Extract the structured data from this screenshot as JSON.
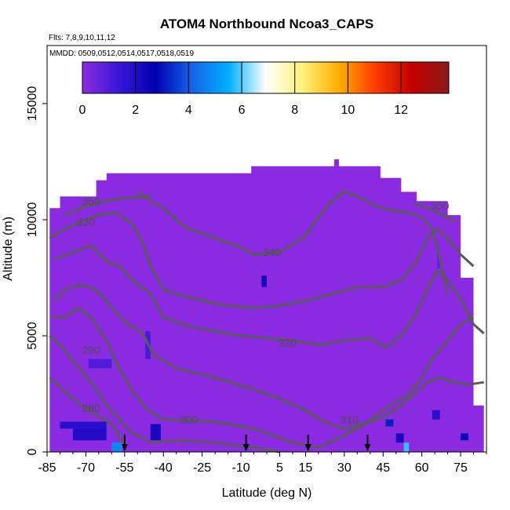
{
  "chart_data": {
    "type": "heatmap",
    "title": "ATOM4 Northbound Ncoa3_CAPS",
    "flights_note": "Flts: 7,8,9,10,11,12",
    "dates_note": "MMDD: 0509,0512,0514,0517,0518,0519",
    "xlabel": "Latitude (deg N)",
    "ylabel": "Altitude (m)",
    "xlim": [
      -85,
      85
    ],
    "ylim": [
      0,
      17500
    ],
    "x_ticks": [
      -85,
      -70,
      -55,
      -40,
      -25,
      -10,
      5,
      15,
      30,
      45,
      60,
      75
    ],
    "y_ticks": [
      0,
      5000,
      10000,
      15000
    ],
    "colorbar": {
      "min": 0,
      "max": 13.8,
      "ticks": [
        0,
        2,
        4,
        6,
        8,
        10,
        12
      ],
      "colors": [
        "#8a2be2",
        "#3a16d8",
        "#0000b0",
        "#1565e8",
        "#00b0ff",
        "#ffffff",
        "#fff27a",
        "#ffae00",
        "#ff3a00",
        "#c00000",
        "#8b1a1a"
      ]
    },
    "background_value": 0,
    "background_color": "#8a2be2",
    "data_envelope": [
      [
        -84,
        0
      ],
      [
        -84,
        10500
      ],
      [
        -80,
        10500
      ],
      [
        -80,
        11000
      ],
      [
        -66,
        11000
      ],
      [
        -66,
        11700
      ],
      [
        -62,
        11700
      ],
      [
        -62,
        12000
      ],
      [
        -6,
        12000
      ],
      [
        -6,
        12300
      ],
      [
        44,
        12300
      ],
      [
        44,
        11800
      ],
      [
        52,
        11800
      ],
      [
        52,
        11200
      ],
      [
        58,
        11200
      ],
      [
        58,
        10800
      ],
      [
        70,
        10800
      ],
      [
        70,
        10200
      ],
      [
        75,
        10200
      ],
      [
        75,
        7500
      ],
      [
        80,
        7500
      ],
      [
        80,
        2000
      ],
      [
        84,
        2000
      ],
      [
        84,
        0
      ]
    ],
    "spikes": [
      [
        27,
        12000,
        12600
      ]
    ],
    "patches": [
      {
        "lat": [
          -80,
          -62
        ],
        "alt": [
          1000,
          1300
        ],
        "value": 1.8
      },
      {
        "lat": [
          -75,
          -62
        ],
        "alt": [
          500,
          1000
        ],
        "value": 2.0
      },
      {
        "lat": [
          -60,
          -56
        ],
        "alt": [
          0,
          400
        ],
        "value": 4.8
      },
      {
        "lat": [
          -45,
          -41
        ],
        "alt": [
          500,
          1200
        ],
        "value": 2.2
      },
      {
        "lat": [
          -69,
          -60
        ],
        "alt": [
          3600,
          4000
        ],
        "value": 1.0
      },
      {
        "lat": [
          -47,
          -45
        ],
        "alt": [
          4000,
          5200
        ],
        "value": 1.1
      },
      {
        "lat": [
          -2,
          0
        ],
        "alt": [
          7100,
          7600
        ],
        "value": 2.2
      },
      {
        "lat": [
          46,
          49
        ],
        "alt": [
          1100,
          1400
        ],
        "value": 3.2
      },
      {
        "lat": [
          50,
          53
        ],
        "alt": [
          400,
          800
        ],
        "value": 2.2
      },
      {
        "lat": [
          53,
          55
        ],
        "alt": [
          0,
          400
        ],
        "value": 5.8
      },
      {
        "lat": [
          64,
          67
        ],
        "alt": [
          1400,
          1800
        ],
        "value": 1.8
      },
      {
        "lat": [
          75,
          78
        ],
        "alt": [
          500,
          800
        ],
        "value": 2.4
      },
      {
        "lat": [
          66,
          67
        ],
        "alt": [
          7900,
          8500
        ],
        "value": 0.8
      }
    ],
    "contours": [
      {
        "level": 280,
        "label": "280",
        "label_at": [
          -68,
          1900
        ],
        "points": [
          [
            -84,
            3200
          ],
          [
            -78,
            2600
          ],
          [
            -72,
            2000
          ],
          [
            -66,
            1600
          ],
          [
            -60,
            1200
          ],
          [
            -57,
            700
          ],
          [
            -55,
            300
          ]
        ]
      },
      {
        "level": 290,
        "label": "290",
        "label_at": [
          -68,
          4400
        ],
        "points": [
          [
            -84,
            5000
          ],
          [
            -80,
            4600
          ],
          [
            -74,
            3800
          ],
          [
            -68,
            3000
          ],
          [
            -62,
            2000
          ],
          [
            -57,
            1400
          ],
          [
            -52,
            800
          ],
          [
            -44,
            400
          ],
          [
            -35,
            500
          ],
          [
            -20,
            400
          ],
          [
            -5,
            200
          ],
          [
            5,
            0
          ]
        ]
      },
      {
        "level": 300,
        "label": "300",
        "label_at": [
          -30,
          1400
        ],
        "points": [
          [
            -83,
            5800
          ],
          [
            -78,
            5800
          ],
          [
            -73,
            6200
          ],
          [
            -68,
            5800
          ],
          [
            -62,
            4800
          ],
          [
            -58,
            3800
          ],
          [
            -52,
            2600
          ],
          [
            -46,
            1800
          ],
          [
            -40,
            1400
          ],
          [
            -20,
            1300
          ],
          [
            -5,
            1000
          ],
          [
            10,
            400
          ],
          [
            20,
            200
          ],
          [
            28,
            600
          ],
          [
            38,
            1200
          ],
          [
            45,
            1800
          ],
          [
            55,
            2500
          ],
          [
            60,
            3200
          ],
          [
            64,
            4000
          ],
          [
            70,
            4800
          ],
          [
            75,
            5500
          ],
          [
            80,
            5800
          ]
        ]
      },
      {
        "level": 310,
        "label": "310",
        "label_at": [
          32,
          1400
        ],
        "points": [
          [
            -82,
            6500
          ],
          [
            -78,
            7000
          ],
          [
            -72,
            7200
          ],
          [
            -66,
            7000
          ],
          [
            -60,
            6200
          ],
          [
            -55,
            5600
          ],
          [
            -48,
            5100
          ],
          [
            -44,
            4200
          ],
          [
            -35,
            3600
          ],
          [
            -20,
            3200
          ],
          [
            -8,
            2800
          ],
          [
            5,
            2300
          ],
          [
            15,
            1800
          ],
          [
            22,
            1300
          ],
          [
            30,
            1000
          ],
          [
            40,
            1300
          ],
          [
            47,
            1600
          ],
          [
            52,
            2000
          ],
          [
            57,
            2500
          ],
          [
            62,
            3000
          ],
          [
            67,
            3200
          ],
          [
            72,
            3000
          ],
          [
            78,
            2900
          ],
          [
            84,
            3000
          ]
        ]
      },
      {
        "level": 320,
        "label": "320",
        "label_at": [
          8,
          4700
        ],
        "points": [
          [
            -82,
            8300
          ],
          [
            -75,
            8600
          ],
          [
            -68,
            8900
          ],
          [
            -62,
            8200
          ],
          [
            -57,
            8000
          ],
          [
            -52,
            7400
          ],
          [
            -45,
            6800
          ],
          [
            -40,
            5800
          ],
          [
            -30,
            5400
          ],
          [
            -20,
            5200
          ],
          [
            -10,
            5000
          ],
          [
            0,
            4900
          ],
          [
            10,
            4800
          ],
          [
            20,
            4600
          ],
          [
            30,
            4800
          ],
          [
            40,
            4900
          ],
          [
            46,
            4500
          ],
          [
            52,
            5000
          ],
          [
            58,
            6000
          ],
          [
            62,
            7000
          ],
          [
            66,
            7800
          ],
          [
            70,
            7400
          ],
          [
            75,
            6600
          ],
          [
            80,
            5500
          ],
          [
            84,
            5100
          ]
        ]
      },
      {
        "level": 330,
        "label": "330",
        "label_at": [
          -70,
          9900
        ],
        "points": [
          [
            -84,
            9200
          ],
          [
            -78,
            9600
          ],
          [
            -72,
            9900
          ],
          [
            -66,
            10200
          ],
          [
            -58,
            10300
          ],
          [
            -52,
            9800
          ],
          [
            -48,
            9000
          ],
          [
            -45,
            8000
          ],
          [
            -40,
            7000
          ],
          [
            -35,
            6800
          ],
          [
            -25,
            6500
          ],
          [
            -15,
            6300
          ],
          [
            -5,
            6200
          ],
          [
            5,
            6300
          ],
          [
            15,
            6500
          ],
          [
            25,
            6800
          ],
          [
            35,
            7100
          ],
          [
            45,
            7100
          ],
          [
            52,
            7400
          ],
          [
            58,
            8200
          ],
          [
            62,
            9200
          ],
          [
            66,
            9600
          ],
          [
            70,
            9200
          ],
          [
            75,
            8500
          ],
          [
            80,
            8000
          ]
        ]
      },
      {
        "level": 340,
        "label": "340",
        "label_at": [
          2,
          8600
        ],
        "points": [
          [
            -50,
            11200
          ],
          [
            -45,
            10800
          ],
          [
            -40,
            10500
          ],
          [
            -35,
            10000
          ],
          [
            -30,
            9600
          ],
          [
            -20,
            9200
          ],
          [
            -10,
            8800
          ],
          [
            -5,
            8500
          ],
          [
            5,
            8600
          ],
          [
            15,
            9300
          ],
          [
            20,
            10100
          ],
          [
            25,
            10800
          ],
          [
            30,
            11200
          ],
          [
            35,
            11000
          ],
          [
            42,
            10600
          ],
          [
            48,
            10400
          ],
          [
            55,
            10300
          ],
          [
            60,
            10100
          ],
          [
            64,
            9600
          ],
          [
            66,
            8800
          ],
          [
            68,
            7800
          ],
          [
            70,
            6800
          ]
        ]
      },
      {
        "level": 350,
        "label": "350",
        "label_at": [
          -68,
          10800
        ],
        "points": [
          [
            -78,
            10200
          ],
          [
            -72,
            10500
          ],
          [
            -66,
            10700
          ],
          [
            -58,
            10900
          ],
          [
            -45,
            11000
          ]
        ]
      },
      {
        "level": 350,
        "label": "350",
        "label_at": [
          67,
          10600
        ],
        "points": [
          [
            57,
            10700
          ],
          [
            62,
            10500
          ],
          [
            66,
            10300
          ],
          [
            70,
            10100
          ],
          [
            73,
            9900
          ]
        ]
      }
    ],
    "flight_arrows_lat": [
      -55,
      -8,
      16,
      39
    ]
  }
}
